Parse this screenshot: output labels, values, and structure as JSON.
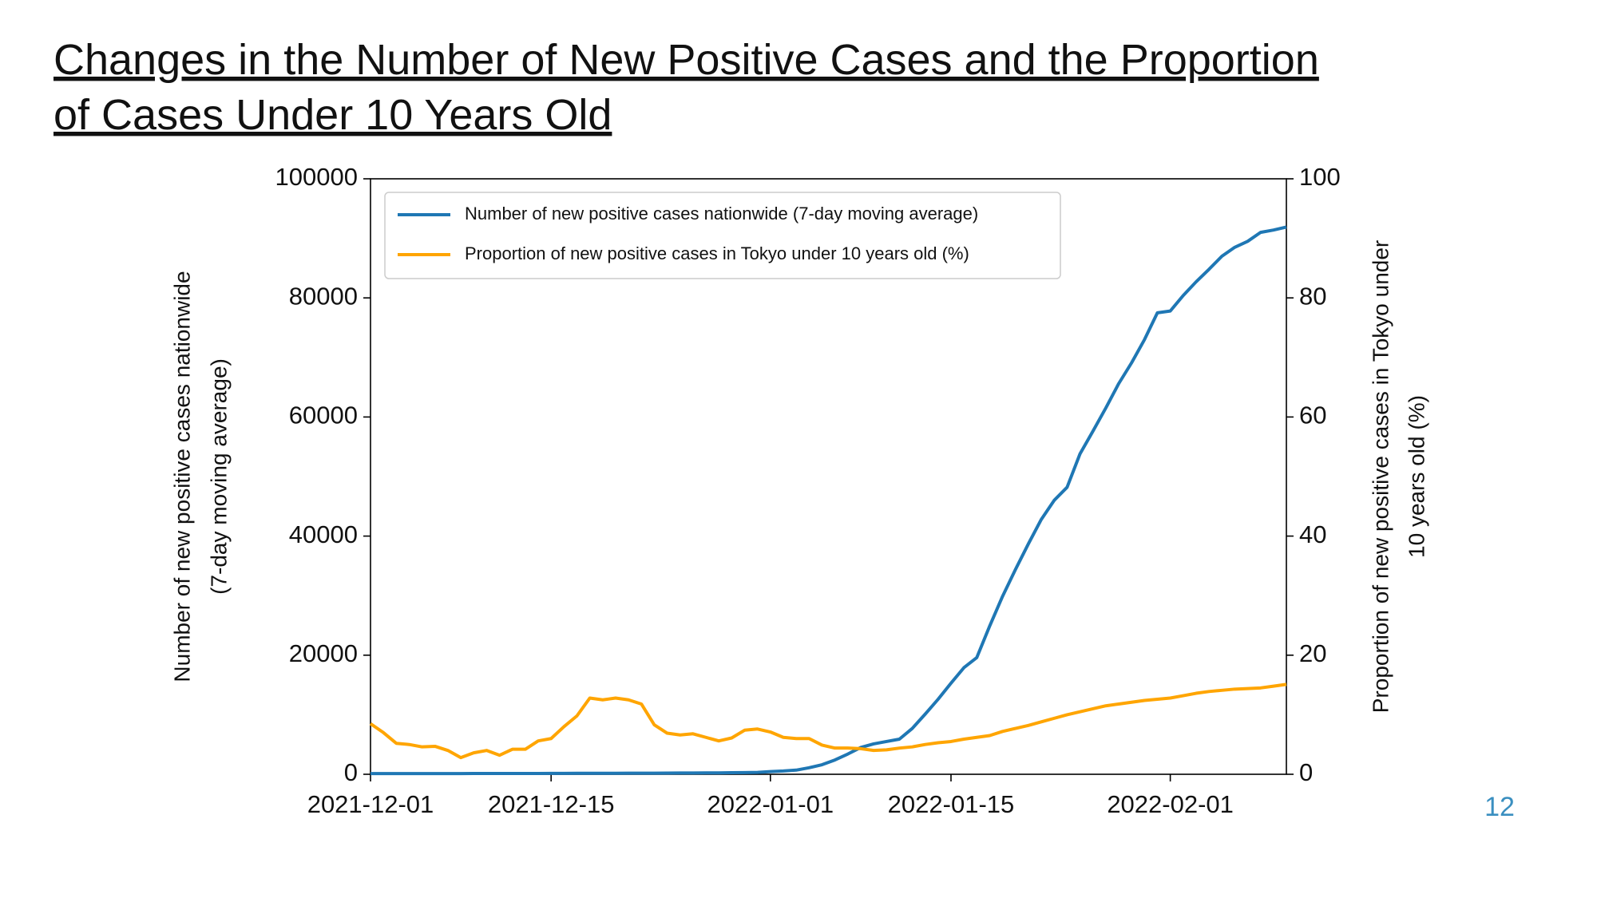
{
  "chart_data": {
    "type": "line",
    "title": [
      "Changes in the Number of New Positive Cases and the Proportion",
      "of Cases Under 10 Years Old"
    ],
    "ylabel": [
      "Number of new positive cases nationwide",
      "(7-day moving average)"
    ],
    "y2label": [
      "Proportion of new positive cases in Tokyo under",
      "10 years old (%)"
    ],
    "x": [
      "2021-12-01",
      "2021-12-02",
      "2021-12-03",
      "2021-12-04",
      "2021-12-05",
      "2021-12-06",
      "2021-12-07",
      "2021-12-08",
      "2021-12-09",
      "2021-12-10",
      "2021-12-11",
      "2021-12-12",
      "2021-12-13",
      "2021-12-14",
      "2021-12-15",
      "2021-12-16",
      "2021-12-17",
      "2021-12-18",
      "2021-12-19",
      "2021-12-20",
      "2021-12-21",
      "2021-12-22",
      "2021-12-23",
      "2021-12-24",
      "2021-12-25",
      "2021-12-26",
      "2021-12-27",
      "2021-12-28",
      "2021-12-29",
      "2021-12-30",
      "2021-12-31",
      "2022-01-01",
      "2022-01-02",
      "2022-01-03",
      "2022-01-04",
      "2022-01-05",
      "2022-01-06",
      "2022-01-07",
      "2022-01-08",
      "2022-01-09",
      "2022-01-10",
      "2022-01-11",
      "2022-01-12",
      "2022-01-13",
      "2022-01-14",
      "2022-01-15",
      "2022-01-16",
      "2022-01-17",
      "2022-01-18",
      "2022-01-19",
      "2022-01-20",
      "2022-01-21",
      "2022-01-22",
      "2022-01-23",
      "2022-01-24",
      "2022-01-25",
      "2022-01-26",
      "2022-01-27",
      "2022-01-28",
      "2022-01-29",
      "2022-01-30",
      "2022-01-31",
      "2022-02-01",
      "2022-02-02",
      "2022-02-03",
      "2022-02-04",
      "2022-02-05",
      "2022-02-06",
      "2022-02-07",
      "2022-02-08",
      "2022-02-09",
      "2022-02-10"
    ],
    "series": [
      {
        "name": "Number of new positive cases nationwide (7-day moving average)",
        "color": "#1f77b4",
        "axis": "y",
        "values": [
          110,
          110,
          115,
          115,
          120,
          120,
          125,
          125,
          130,
          130,
          135,
          135,
          140,
          140,
          150,
          150,
          160,
          160,
          170,
          170,
          180,
          180,
          190,
          200,
          210,
          220,
          230,
          240,
          260,
          280,
          320,
          450,
          550,
          700,
          1100,
          1600,
          2400,
          3400,
          4500,
          5100,
          5500,
          5900,
          7700,
          10100,
          12600,
          15300,
          17900,
          19600,
          24900,
          29900,
          34400,
          38700,
          42800,
          46000,
          48200,
          53800,
          57600,
          61500,
          65600,
          69100,
          73000,
          77500,
          77800,
          80400,
          82700,
          84800,
          87000,
          88500,
          89500,
          91000,
          91400,
          91900
        ]
      },
      {
        "name": "Proportion of new positive cases in Tokyo under 10 years old (%)",
        "color": "#ffa500",
        "axis": "y2",
        "values": [
          8.5,
          7,
          5.2,
          5,
          4.6,
          4.7,
          4,
          2.8,
          3.6,
          4,
          3.2,
          4.2,
          4.2,
          5.6,
          6,
          8,
          9.8,
          12.8,
          12.5,
          12.8,
          12.5,
          11.8,
          8.3,
          6.9,
          6.6,
          6.8,
          6.2,
          5.6,
          6.1,
          7.4,
          7.6,
          7.1,
          6.2,
          6,
          6,
          4.9,
          4.4,
          4.4,
          4.3,
          4,
          4.1,
          4.4,
          4.6,
          5,
          5.3,
          5.5,
          5.9,
          6.2,
          6.5,
          7.2,
          7.7,
          8.2,
          8.8,
          9.4,
          10,
          10.5,
          11,
          11.5,
          11.8,
          12.1,
          12.4,
          12.6,
          12.8,
          13.2,
          13.6,
          13.9,
          14.1,
          14.3,
          14.4,
          14.5,
          14.8,
          15.1
        ]
      }
    ],
    "xlim": [
      "2021-12-01",
      "2022-02-10"
    ],
    "xticks": [
      "2021-12-01",
      "2021-12-15",
      "2022-01-01",
      "2022-01-15",
      "2022-02-01"
    ],
    "ylim": [
      0,
      100000
    ],
    "yticks": [
      0,
      20000,
      40000,
      60000,
      80000,
      100000
    ],
    "y2lim": [
      0,
      100
    ],
    "y2ticks": [
      0,
      20,
      40,
      60,
      80,
      100
    ],
    "grid": false,
    "legend": "upper left"
  },
  "page_number": "12"
}
